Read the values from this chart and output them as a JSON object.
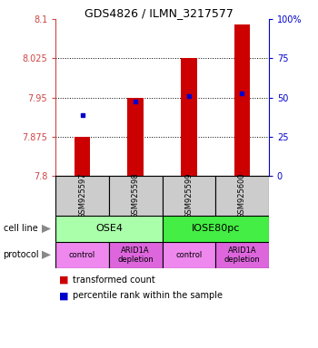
{
  "title": "GDS4826 / ILMN_3217577",
  "samples": [
    "GSM925597",
    "GSM925598",
    "GSM925599",
    "GSM925600"
  ],
  "bar_values": [
    7.875,
    7.95,
    8.025,
    8.09
  ],
  "bar_base": 7.8,
  "percentile_values": [
    7.916,
    7.942,
    7.952,
    7.958
  ],
  "ylim_left": [
    7.8,
    8.1
  ],
  "ylim_right": [
    0,
    100
  ],
  "yticks_left": [
    7.8,
    7.875,
    7.95,
    8.025,
    8.1
  ],
  "ytick_labels_left": [
    "7.8",
    "7.875",
    "7.95",
    "8.025",
    "8.1"
  ],
  "yticks_right": [
    0,
    25,
    50,
    75,
    100
  ],
  "ytick_labels_right": [
    "0",
    "25",
    "50",
    "75",
    "100%"
  ],
  "bar_color": "#cc0000",
  "percentile_color": "#0000cc",
  "grid_yticks": [
    7.875,
    7.95,
    8.025
  ],
  "cell_line_groups": [
    {
      "label": "OSE4",
      "span": [
        0,
        2
      ],
      "color": "#aaffaa"
    },
    {
      "label": "IOSE80pc",
      "span": [
        2,
        4
      ],
      "color": "#44ee44"
    }
  ],
  "protocol_groups": [
    {
      "label": "control",
      "span": [
        0,
        1
      ],
      "color": "#ee88ee"
    },
    {
      "label": "ARID1A\ndepletion",
      "span": [
        1,
        2
      ],
      "color": "#dd66dd"
    },
    {
      "label": "control",
      "span": [
        2,
        3
      ],
      "color": "#ee88ee"
    },
    {
      "label": "ARID1A\ndepletion",
      "span": [
        3,
        4
      ],
      "color": "#dd66dd"
    }
  ],
  "sample_box_color": "#cccccc",
  "legend_items": [
    {
      "label": "transformed count",
      "color": "#cc0000"
    },
    {
      "label": "percentile rank within the sample",
      "color": "#0000cc"
    }
  ]
}
